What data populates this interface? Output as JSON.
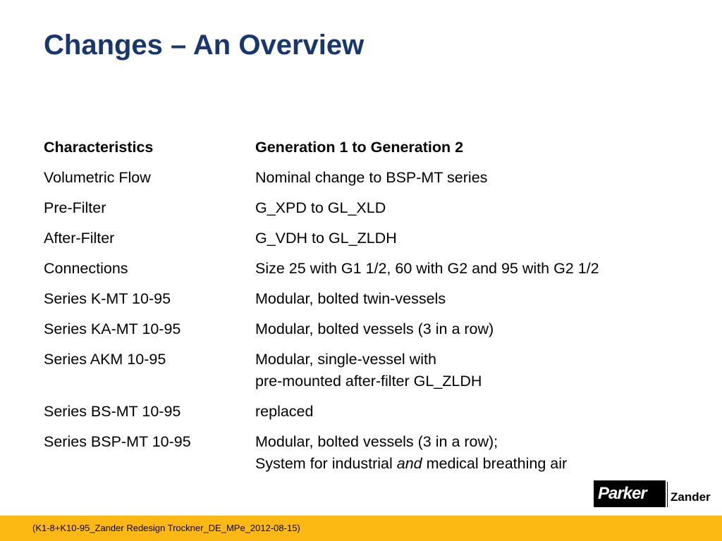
{
  "header": {
    "title": "Changes – An Overview"
  },
  "table": {
    "columns": [
      "Characteristics",
      "Generation 1 to Generation 2"
    ],
    "rows": [
      {
        "label": "Volumetric Flow",
        "lines": [
          "Nominal change to BSP-MT series"
        ]
      },
      {
        "label": "Pre-Filter",
        "lines": [
          "G_XPD to GL_XLD"
        ]
      },
      {
        "label": "After-Filter",
        "lines": [
          "G_VDH to GL_ZLDH"
        ]
      },
      {
        "label": "Connections",
        "lines": [
          "Size 25 with G1 1/2, 60 with G2 and 95 with G2 1/2"
        ]
      },
      {
        "label": "Series K-MT 10-95",
        "lines": [
          "Modular, bolted twin-vessels"
        ]
      },
      {
        "label": "Series KA-MT 10-95",
        "lines": [
          "Modular, bolted vessels (3 in a row)"
        ]
      },
      {
        "label": "Series AKM 10-95",
        "lines": [
          "Modular, single-vessel with",
          "pre-mounted after-filter GL_ZLDH"
        ]
      },
      {
        "label": "Series BS-MT 10-95",
        "lines": [
          "replaced"
        ]
      },
      {
        "label": "Series BSP-MT 10-95",
        "lines": [
          "Modular, bolted vessels (3 in a row);",
          [
            "System for industrial ",
            "and",
            " medical breathing air"
          ]
        ]
      }
    ]
  },
  "logo": {
    "brand": "Parker",
    "division": "Zander"
  },
  "footer": {
    "reference": "(K1-8+K10-95_Zander Redesign Trockner_DE_MPe_2012-08-15)"
  }
}
